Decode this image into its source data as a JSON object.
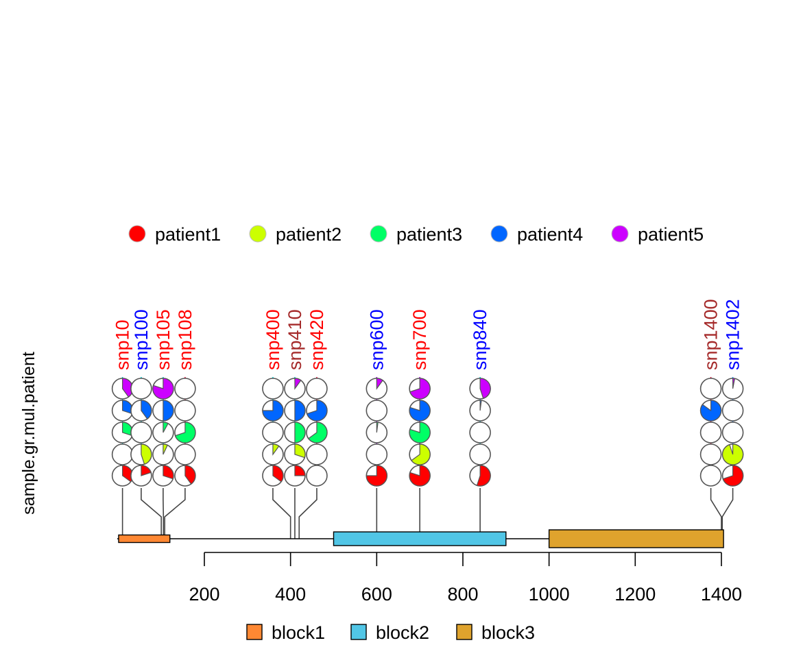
{
  "chart_data": {
    "type": "lollipop-pie",
    "ylabel": "sample.gr.mul.patient",
    "xlim": [
      200,
      1400
    ],
    "x_ticks": [
      200,
      400,
      600,
      800,
      1000,
      1200,
      1400
    ],
    "tick_labels": [
      "200",
      "400",
      "600",
      "800",
      "1000",
      "1200",
      "1400"
    ],
    "legend": {
      "placement": "top",
      "items": [
        {
          "label": "patient1",
          "color": "#FF0000"
        },
        {
          "label": "patient2",
          "color": "#CCFF00"
        },
        {
          "label": "patient3",
          "color": "#00FF66"
        },
        {
          "label": "patient4",
          "color": "#0066FF"
        },
        {
          "label": "patient5",
          "color": "#CC00FF"
        }
      ]
    },
    "features": {
      "backbone": [
        1,
        1405
      ],
      "items": [
        {
          "name": "block1",
          "start": 1,
          "end": 120,
          "color": "#FF8833"
        },
        {
          "name": "block2",
          "start": 500,
          "end": 900,
          "color": "#51C6E6"
        },
        {
          "name": "block3",
          "start": 1000,
          "end": 1405,
          "color": "#DFA32D"
        }
      ]
    },
    "snps": [
      {
        "name": "snp10",
        "position": 10,
        "label_color": "#FF0000",
        "line_color": "#00CED1",
        "fractions": [
          0.35,
          0,
          0.3,
          0.3,
          0.4
        ]
      },
      {
        "name": "snp100",
        "position": 100,
        "label_color": "#0000FF",
        "line_color": "#00CED1",
        "fractions": [
          0.2,
          0.45,
          0,
          0.4,
          0
        ]
      },
      {
        "name": "snp105",
        "position": 105,
        "label_color": "#FF0000",
        "line_color": "#00CED1",
        "fractions": [
          0.3,
          0.07,
          0.08,
          0.5,
          0.8
        ]
      },
      {
        "name": "snp108",
        "position": 108,
        "label_color": "#FF0000",
        "line_color": "#DC143C",
        "fractions": [
          0.4,
          0,
          0.7,
          0,
          0
        ]
      },
      {
        "name": "snp400",
        "position": 400,
        "label_color": "#FF0000",
        "line_color": "#00CED1",
        "fractions": [
          0.35,
          0.1,
          0,
          0.75,
          0
        ]
      },
      {
        "name": "snp410",
        "position": 410,
        "label_color": "#A52A2A",
        "line_color": "#00CED1",
        "fractions": [
          0.25,
          0.3,
          0.5,
          0.5,
          0.1
        ]
      },
      {
        "name": "snp420",
        "position": 420,
        "label_color": "#FF0000",
        "line_color": "#DC143C",
        "fractions": [
          0,
          0,
          0.65,
          0.7,
          0
        ]
      },
      {
        "name": "snp600",
        "position": 600,
        "label_color": "#0000FF",
        "line_color": "#9400D3",
        "fractions": [
          0.75,
          0,
          0.02,
          0,
          0.1
        ]
      },
      {
        "name": "snp700",
        "position": 700,
        "label_color": "#FF0000",
        "line_color": "#9400D3",
        "fractions": [
          0.8,
          0.65,
          0.8,
          0.8,
          0.7
        ]
      },
      {
        "name": "snp840",
        "position": 840,
        "label_color": "#0000FF",
        "line_color": "#00CED1",
        "fractions": [
          0.55,
          0,
          0,
          0.02,
          0.45
        ]
      },
      {
        "name": "snp1400",
        "position": 1400,
        "label_color": "#A52A2A",
        "line_color": "#DC143C",
        "fractions": [
          0,
          0,
          0,
          0.85,
          0
        ]
      },
      {
        "name": "snp1402",
        "position": 1402,
        "label_color": "#0000FF",
        "line_color": "#1E90FF",
        "fractions": [
          0.7,
          0.95,
          0,
          0,
          0.03
        ]
      }
    ]
  }
}
